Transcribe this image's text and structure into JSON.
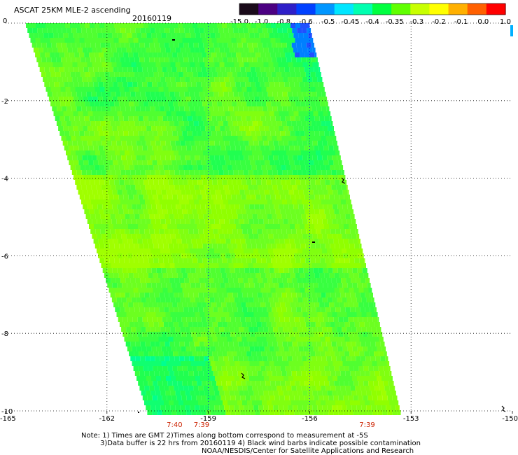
{
  "header": {
    "title": "ASCAT 25KM MLE-2 ascending",
    "date": "20160119"
  },
  "colorbar": {
    "colors": [
      "#1a0a1a",
      "#4b0082",
      "#2e1fc8",
      "#0040ff",
      "#0096ff",
      "#00e6ff",
      "#00ffb0",
      "#00ff40",
      "#60ff00",
      "#c8ff00",
      "#ffff00",
      "#ffb000",
      "#ff6000",
      "#ff0000"
    ],
    "labels": [
      "-15.0",
      "-1.0",
      "-0.8",
      "-0.6",
      "-0.5",
      "-0.45",
      "-0.4",
      "-0.35",
      "-0.3",
      "-0.2",
      "-0.1",
      "0.0",
      "1.0"
    ]
  },
  "axes": {
    "y_ticks": [
      {
        "value": 0,
        "label": "0"
      },
      {
        "value": -2,
        "label": "-2"
      },
      {
        "value": -4,
        "label": "-4"
      },
      {
        "value": -6,
        "label": "-6"
      },
      {
        "value": -8,
        "label": "-8"
      },
      {
        "value": -10,
        "label": "-10"
      }
    ],
    "x_ticks": [
      {
        "value": -165,
        "label": "-165"
      },
      {
        "value": -162,
        "label": "-162"
      },
      {
        "value": -159,
        "label": "-159"
      },
      {
        "value": -156,
        "label": "-156"
      },
      {
        "value": -153,
        "label": "-153"
      },
      {
        "value": -150,
        "label": "-150"
      }
    ],
    "grid_longitudes": [
      -162,
      -159,
      -156,
      -153
    ],
    "grid_latitudes": [
      -2,
      -4,
      -6,
      -8
    ]
  },
  "swath_times": [
    {
      "label": "7:40",
      "lon": -160.0
    },
    {
      "label": "7:39",
      "lon": -159.2
    },
    {
      "label": "7:39",
      "lon": -154.3
    }
  ],
  "notes": {
    "line1": "Note: 1) Times are GMT 2)Times along bottom correspond to measurement at -5S",
    "line2": "3)Data buffer is 22 hrs from 20160119 4) Black wind barbs indicate possible contamination",
    "line3": "NOAA/NESDIS/Center for Satellite Applications and Research"
  },
  "colors": {
    "time_label": "#cc2200",
    "grid_dots": "#000000",
    "swath_time_line": "#0000ff"
  }
}
